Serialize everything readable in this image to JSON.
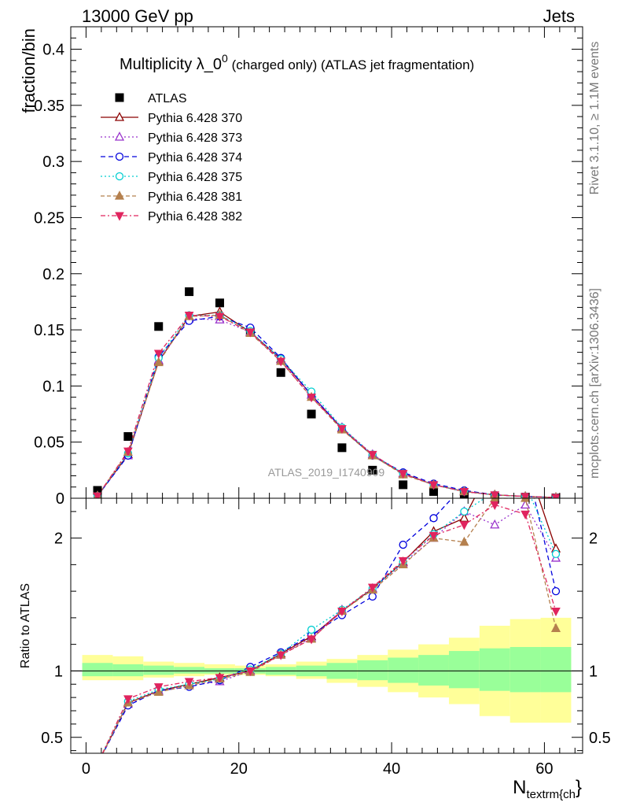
{
  "header": {
    "left": "13000 GeV pp",
    "right": "Jets"
  },
  "side_text": {
    "rivet": "Rivet 3.1.10, ≥ 1.1M events",
    "mcplots": "mcplots.cern.ch [arXiv:1306.3436]"
  },
  "watermark": "ATLAS_2019_I1740909",
  "chart_data": [
    {
      "type": "scatter",
      "title_main": "Multiplicity λ_0",
      "title_sup": "0",
      "title_rest": " (charged only) (ATLAS jet fragmentation)",
      "ylabel": "fraction/bin",
      "xlim": [
        -2,
        65
      ],
      "ylim": [
        0,
        0.42
      ],
      "yticks": [
        "0",
        "0.05",
        "0.1",
        "0.15",
        "0.2",
        "0.25",
        "0.3",
        "0.35",
        "0.4"
      ],
      "x": [
        1.5,
        5.5,
        9.5,
        13.5,
        17.5,
        21.5,
        25.5,
        29.5,
        33.5,
        37.5,
        41.5,
        45.5,
        49.5,
        53.5,
        57.5,
        61.5
      ],
      "legend_position": "top-left",
      "series": [
        {
          "name": "ATLAS",
          "marker": "square",
          "color": "#000000",
          "dash": "",
          "values": [
            0.007,
            0.055,
            0.153,
            0.184,
            0.174,
            0.148,
            0.112,
            0.075,
            0.045,
            0.025,
            0.012,
            0.006,
            0.003,
            0.001,
            0.001,
            0.0003
          ]
        },
        {
          "name": "Pythia 6.428 370",
          "marker": "triangle-open",
          "color": "#8b0000",
          "dash": "",
          "values": [
            0.002,
            0.039,
            0.122,
            0.162,
            0.166,
            0.148,
            0.124,
            0.092,
            0.062,
            0.038,
            0.022,
            0.012,
            0.006,
            0.003,
            0.0016,
            0.0007
          ]
        },
        {
          "name": "Pythia 6.428 373",
          "marker": "triangle-open",
          "color": "#9932cc",
          "dash": "2,3",
          "values": [
            0.002,
            0.038,
            0.123,
            0.16,
            0.159,
            0.148,
            0.123,
            0.092,
            0.063,
            0.039,
            0.022,
            0.012,
            0.006,
            0.003,
            0.0016,
            0.0007
          ]
        },
        {
          "name": "Pythia 6.428 374",
          "marker": "circle-open",
          "color": "#0000dd",
          "dash": "6,4",
          "values": [
            0.002,
            0.038,
            0.126,
            0.158,
            0.162,
            0.152,
            0.125,
            0.092,
            0.062,
            0.038,
            0.023,
            0.013,
            0.007,
            0.003,
            0.0016,
            0.0007
          ]
        },
        {
          "name": "Pythia 6.428 375",
          "marker": "circle-open",
          "color": "#00ced1",
          "dash": "2,3",
          "values": [
            0.002,
            0.04,
            0.125,
            0.163,
            0.163,
            0.149,
            0.124,
            0.095,
            0.063,
            0.039,
            0.022,
            0.012,
            0.006,
            0.003,
            0.0016,
            0.0007
          ]
        },
        {
          "name": "Pythia 6.428 381",
          "marker": "triangle-filled",
          "color": "#b5804e",
          "dash": "5,3",
          "values": [
            0.002,
            0.041,
            0.121,
            0.162,
            0.163,
            0.147,
            0.122,
            0.09,
            0.061,
            0.038,
            0.021,
            0.012,
            0.006,
            0.003,
            0.0016,
            0.0007
          ]
        },
        {
          "name": "Pythia 6.428 382",
          "marker": "triangledown-filled",
          "color": "#e0245e",
          "dash": "6,3,2,3",
          "values": [
            0.002,
            0.042,
            0.129,
            0.163,
            0.162,
            0.148,
            0.122,
            0.09,
            0.062,
            0.039,
            0.022,
            0.012,
            0.006,
            0.003,
            0.0016,
            0.0007
          ]
        }
      ]
    },
    {
      "type": "line",
      "ylabel": "Ratio to ATLAS",
      "xlabel_main": "N",
      "xlabel_sub": "textrm{ch",
      "xlabel_tail": "}",
      "xlim": [
        -2,
        65
      ],
      "ylim": [
        0.38,
        2.3
      ],
      "yticks_left": [
        "0.5",
        "1",
        "2"
      ],
      "yticks_right": [
        "0.5",
        "1",
        "2"
      ],
      "xticks": [
        "0",
        "20",
        "40",
        "60"
      ],
      "x": [
        1.5,
        5.5,
        9.5,
        13.5,
        17.5,
        21.5,
        25.5,
        29.5,
        33.5,
        37.5,
        41.5,
        45.5,
        49.5,
        53.5,
        57.5,
        61.5
      ],
      "band_colors": {
        "outer": "#ffff99",
        "inner": "#99ff99"
      },
      "band_outer_lo": [
        0.93,
        0.93,
        0.95,
        0.96,
        0.97,
        0.97,
        0.96,
        0.94,
        0.91,
        0.88,
        0.84,
        0.8,
        0.75,
        0.66,
        0.61,
        0.61
      ],
      "band_outer_hi": [
        1.12,
        1.11,
        1.07,
        1.06,
        1.05,
        1.04,
        1.05,
        1.07,
        1.09,
        1.12,
        1.16,
        1.2,
        1.25,
        1.34,
        1.39,
        1.4
      ],
      "band_inner_lo": [
        0.96,
        0.96,
        0.97,
        0.98,
        0.98,
        0.98,
        0.97,
        0.96,
        0.94,
        0.93,
        0.91,
        0.89,
        0.87,
        0.85,
        0.84,
        0.84
      ],
      "band_inner_hi": [
        1.06,
        1.05,
        1.04,
        1.03,
        1.02,
        1.02,
        1.03,
        1.04,
        1.06,
        1.08,
        1.1,
        1.12,
        1.15,
        1.17,
        1.18,
        1.18
      ],
      "series": [
        {
          "name": "Pythia 6.428 370",
          "values": [
            0.3,
            0.76,
            0.85,
            0.9,
            0.95,
            1.0,
            1.13,
            1.26,
            1.45,
            1.62,
            1.82,
            2.05,
            2.15,
            2.6,
            2.6,
            1.92
          ]
        },
        {
          "name": "Pythia 6.428 373",
          "values": [
            0.3,
            0.75,
            0.85,
            0.89,
            0.92,
            1.0,
            1.12,
            1.25,
            1.46,
            1.62,
            1.81,
            2.0,
            2.2,
            2.1,
            2.25,
            1.85
          ]
        },
        {
          "name": "Pythia 6.428 374",
          "values": [
            0.3,
            0.74,
            0.85,
            0.88,
            0.93,
            1.03,
            1.14,
            1.27,
            1.42,
            1.56,
            1.95,
            2.15,
            2.4,
            2.6,
            2.6,
            1.6
          ]
        },
        {
          "name": "Pythia 6.428 375",
          "values": [
            0.3,
            0.77,
            0.86,
            0.9,
            0.94,
            1.01,
            1.13,
            1.31,
            1.46,
            1.62,
            1.82,
            2.03,
            2.2,
            2.35,
            2.4,
            1.88
          ]
        },
        {
          "name": "Pythia 6.428 381",
          "values": [
            0.3,
            0.76,
            0.84,
            0.89,
            0.94,
            0.99,
            1.12,
            1.24,
            1.45,
            1.61,
            1.8,
            2.0,
            1.97,
            2.3,
            2.3,
            1.32
          ]
        },
        {
          "name": "Pythia 6.428 382",
          "values": [
            0.3,
            0.79,
            0.88,
            0.92,
            0.95,
            1.0,
            1.12,
            1.24,
            1.45,
            1.63,
            1.83,
            2.02,
            2.1,
            2.25,
            2.18,
            1.45
          ]
        }
      ]
    }
  ]
}
